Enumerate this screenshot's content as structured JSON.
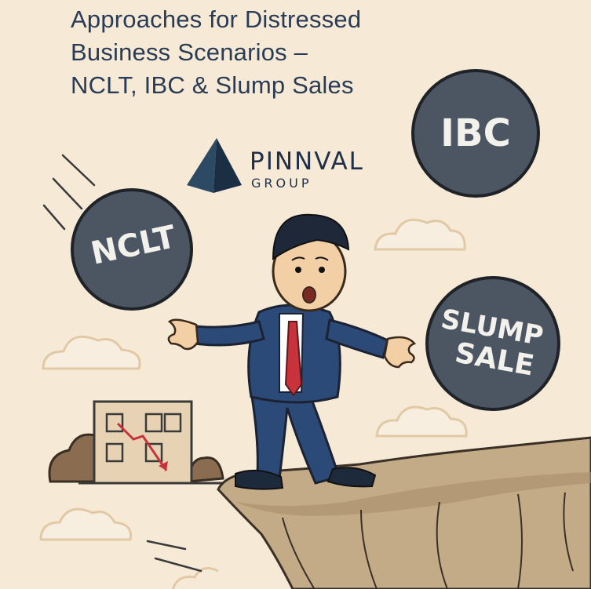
{
  "title": {
    "line1": "Approaches for Distressed",
    "line2": "Business Scenarios –",
    "line3": "NCLT, IBC & Slump Sales"
  },
  "brand": {
    "name": "PINNVAL",
    "sub": "GROUP",
    "logo_icon": "pyramid-icon"
  },
  "balls": {
    "ncl": "NCLT",
    "ibc": "IBC",
    "slump_line1": "SLUMP",
    "slump_line2": "SALE"
  },
  "colors": {
    "background": "#f6ead7",
    "title": "#2a3c55",
    "ball": "#4c5663",
    "suit": "#2c4a77",
    "tie": "#c8333b",
    "cliff": "#b39a78"
  }
}
